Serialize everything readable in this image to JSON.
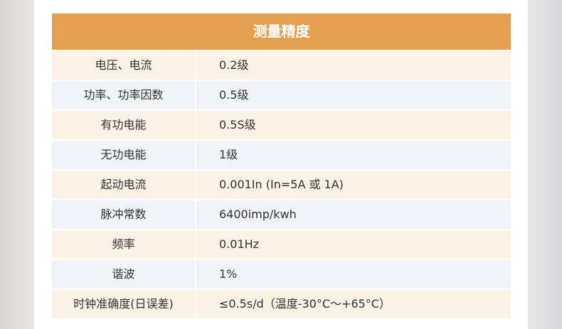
{
  "table": {
    "title": "测量精度",
    "rows": [
      [
        "电压、电流",
        "0.2级"
      ],
      [
        "功率、功率因数",
        "0.5级"
      ],
      [
        "有功电能",
        "0.5S级"
      ],
      [
        "无功电能",
        "1级"
      ],
      [
        "起动电流",
        "0.001In (In=5A 或 1A)"
      ],
      [
        "脉冲常数",
        "6400imp/kwh"
      ],
      [
        "频率",
        "0.01Hz"
      ],
      [
        "谐波",
        "1%"
      ],
      [
        "时钟准确度(日误差)",
        "≤0.5s/d（温度-30°C～+65°C）"
      ]
    ]
  }
}
